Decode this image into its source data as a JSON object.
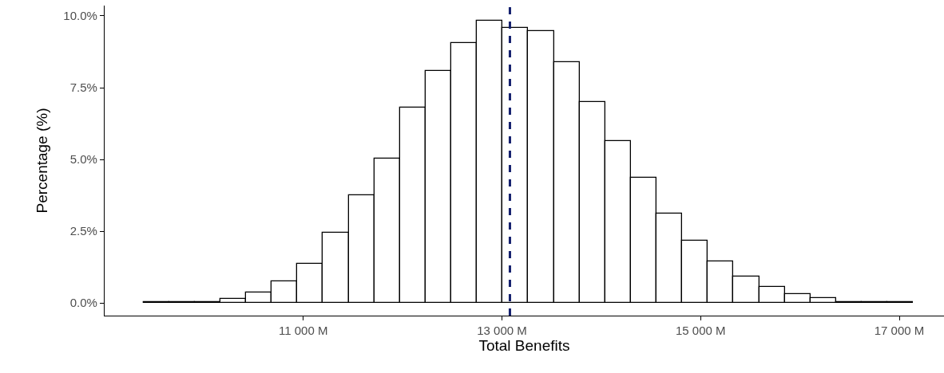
{
  "chart_data": {
    "type": "histogram",
    "xlabel": "Total Benefits",
    "ylabel": "Percentage (%)",
    "bins": [
      9390,
      9648.3,
      9906.6,
      10164.9,
      10423.2,
      10681.5,
      10939.8,
      11198.1,
      11456.4,
      11714.7,
      11973,
      12231.3,
      12489.6,
      12747.9,
      13006.2,
      13264.5,
      13522.8,
      13781.1,
      14039.4,
      14297.7,
      14556,
      14814.3,
      15072.6,
      15330.9,
      15589.2,
      15847.5,
      16105.8,
      16364.1,
      16622.4,
      16880.7,
      17139
    ],
    "values": [
      0.02,
      0.02,
      0.02,
      0.15,
      0.37,
      0.75,
      1.37,
      2.46,
      3.75,
      5.04,
      6.82,
      8.07,
      9.05,
      9.83,
      9.57,
      9.48,
      8.39,
      6.99,
      5.63,
      4.35,
      3.1,
      2.17,
      1.44,
      0.92,
      0.56,
      0.3,
      0.18,
      0.02,
      0.02,
      0.02
    ],
    "color": "#ffffff",
    "xlim": [
      9000,
      17450
    ],
    "ylim": [
      -0.44,
      10.36
    ],
    "xticks": [
      {
        "value": 11000,
        "label": "11 000 M"
      },
      {
        "value": 13000,
        "label": "13 000 M"
      },
      {
        "value": 15000,
        "label": "15 000 M"
      },
      {
        "value": 17000,
        "label": "17 000 M"
      }
    ],
    "yticks": [
      {
        "value": 0,
        "label": "0.0%"
      },
      {
        "value": 2.5,
        "label": "2.5%"
      },
      {
        "value": 5,
        "label": "5.0%"
      },
      {
        "value": 7.5,
        "label": "7.5%"
      },
      {
        "value": 10,
        "label": "10.0%"
      }
    ],
    "ref_lines": [
      {
        "axis": "x",
        "value": 13080,
        "label": null,
        "color": "#14206e",
        "line_style": "dashed"
      }
    ]
  }
}
